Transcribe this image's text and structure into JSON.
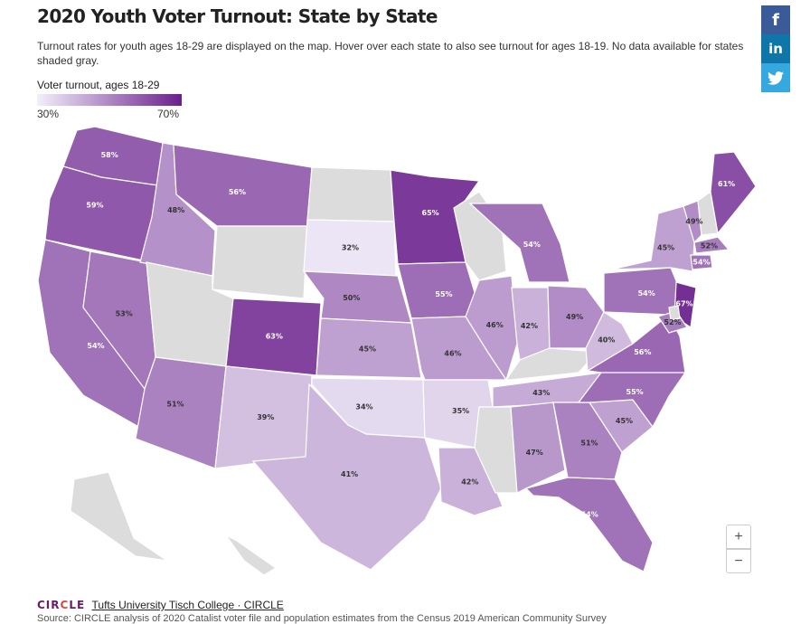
{
  "header": {
    "title": "2020 Youth Voter Turnout: State by State",
    "subtitle": "Turnout rates for youth ages 18-29 are displayed on the map. Hover over each state to also see turnout for ages 18-19. No data available for states shaded gray."
  },
  "legend": {
    "title": "Voter turnout, ages 18-29",
    "min_label": "30%",
    "max_label": "70%",
    "min_value": 30,
    "max_value": 70,
    "color_low": "#f2effa",
    "color_high": "#6a1f8c",
    "no_data_color": "#dcdcdc"
  },
  "social": {
    "facebook_icon": "facebook-icon",
    "linkedin_icon": "linkedin-icon",
    "twitter_icon": "twitter-icon",
    "facebook_glyph": "f",
    "linkedin_glyph": "in"
  },
  "zoom": {
    "in_label": "+",
    "out_label": "−"
  },
  "states": [
    {
      "name": "WA",
      "label": "58%",
      "value": 58
    },
    {
      "name": "OR",
      "label": "59%",
      "value": 59
    },
    {
      "name": "CA",
      "label": "54%",
      "value": 54
    },
    {
      "name": "NV",
      "label": "53%",
      "value": 53
    },
    {
      "name": "ID",
      "label": "48%",
      "value": 48
    },
    {
      "name": "MT",
      "label": "56%",
      "value": 56
    },
    {
      "name": "WY",
      "label": "",
      "value": null
    },
    {
      "name": "UT",
      "label": "",
      "value": null
    },
    {
      "name": "AZ",
      "label": "51%",
      "value": 51
    },
    {
      "name": "CO",
      "label": "63%",
      "value": 63
    },
    {
      "name": "NM",
      "label": "39%",
      "value": 39
    },
    {
      "name": "ND",
      "label": "",
      "value": null
    },
    {
      "name": "SD",
      "label": "32%",
      "value": 32
    },
    {
      "name": "NE",
      "label": "50%",
      "value": 50
    },
    {
      "name": "KS",
      "label": "45%",
      "value": 45
    },
    {
      "name": "OK",
      "label": "34%",
      "value": 34
    },
    {
      "name": "TX",
      "label": "41%",
      "value": 41
    },
    {
      "name": "MN",
      "label": "65%",
      "value": 65
    },
    {
      "name": "IA",
      "label": "55%",
      "value": 55
    },
    {
      "name": "MO",
      "label": "46%",
      "value": 46
    },
    {
      "name": "AR",
      "label": "35%",
      "value": 35
    },
    {
      "name": "LA",
      "label": "42%",
      "value": 42
    },
    {
      "name": "WI",
      "label": "",
      "value": null
    },
    {
      "name": "IL",
      "label": "46%",
      "value": 46
    },
    {
      "name": "MI",
      "label": "54%",
      "value": 54
    },
    {
      "name": "IN",
      "label": "42%",
      "value": 42
    },
    {
      "name": "OH",
      "label": "49%",
      "value": 49
    },
    {
      "name": "KY",
      "label": "",
      "value": null
    },
    {
      "name": "TN",
      "label": "43%",
      "value": 43
    },
    {
      "name": "MS",
      "label": "",
      "value": null
    },
    {
      "name": "AL",
      "label": "47%",
      "value": 47
    },
    {
      "name": "GA",
      "label": "51%",
      "value": 51
    },
    {
      "name": "FL",
      "label": "54%",
      "value": 54
    },
    {
      "name": "SC",
      "label": "45%",
      "value": 45
    },
    {
      "name": "NC",
      "label": "55%",
      "value": 55
    },
    {
      "name": "VA",
      "label": "56%",
      "value": 56
    },
    {
      "name": "WV",
      "label": "40%",
      "value": 40
    },
    {
      "name": "PA",
      "label": "54%",
      "value": 54
    },
    {
      "name": "NY",
      "label": "45%",
      "value": 45
    },
    {
      "name": "VT",
      "label": "49%",
      "value": 49
    },
    {
      "name": "NH",
      "label": "",
      "value": null
    },
    {
      "name": "ME",
      "label": "61%",
      "value": 61
    },
    {
      "name": "MA",
      "label": "52%",
      "value": 52
    },
    {
      "name": "CT",
      "label": "54%",
      "value": 54
    },
    {
      "name": "NJ",
      "label": "67%",
      "value": 67
    },
    {
      "name": "MD",
      "label": "52%",
      "value": 52
    },
    {
      "name": "DE",
      "label": "",
      "value": null
    },
    {
      "name": "AK",
      "label": "",
      "value": null
    },
    {
      "name": "HI",
      "label": "",
      "value": null
    }
  ],
  "footer": {
    "logo_prefix": "CIR",
    "logo_mark": "C",
    "logo_suffix": "LE",
    "link_text": "Tufts University Tisch College · CIRCLE",
    "source_text": "Source: CIRCLE analysis of 2020 Catalist voter file and population estimates from the Census 2019 American Community Survey"
  }
}
